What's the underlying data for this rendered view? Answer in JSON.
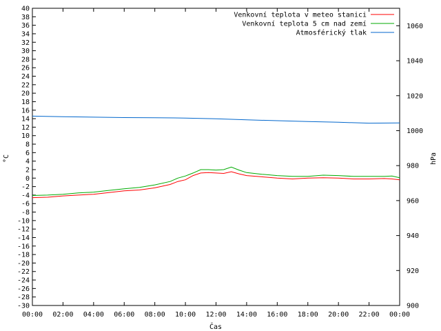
{
  "chart_data": {
    "type": "line",
    "xlabel": "Čas",
    "ylabel_left": "°C",
    "ylabel_right": "hPa",
    "x_ticks": [
      "00:00",
      "02:00",
      "04:00",
      "06:00",
      "08:00",
      "10:00",
      "12:00",
      "14:00",
      "16:00",
      "18:00",
      "20:00",
      "22:00",
      "00:00"
    ],
    "x_range_hours": [
      0,
      24
    ],
    "y_left_range": [
      -30,
      40
    ],
    "y_left_step": 2,
    "y_right_range": [
      900,
      1070
    ],
    "y_right_ticks": [
      900,
      920,
      940,
      960,
      980,
      1000,
      1020,
      1040,
      1060
    ],
    "grid": false,
    "legend_position": "top-right",
    "series": [
      {
        "name": "Venkovní teplota v meteo stanici",
        "color": "#ff0000",
        "axis": "left",
        "x": [
          0,
          1,
          2,
          3,
          4,
          5,
          6,
          7,
          8,
          9,
          9.5,
          10,
          10.5,
          11,
          11.5,
          12,
          12.5,
          13,
          13.5,
          14,
          15,
          16,
          17,
          18,
          19,
          20,
          21,
          22,
          23,
          23.5,
          24
        ],
        "values": [
          -4.6,
          -4.5,
          -4.2,
          -4.0,
          -3.8,
          -3.4,
          -3.0,
          -2.8,
          -2.3,
          -1.5,
          -0.8,
          -0.4,
          0.6,
          1.2,
          1.3,
          1.2,
          1.1,
          1.5,
          1.0,
          0.6,
          0.3,
          0.0,
          -0.2,
          0.0,
          0.1,
          0.0,
          -0.2,
          -0.2,
          -0.1,
          -0.2,
          -0.4
        ]
      },
      {
        "name": "Venkovní teplota 5 cm nad zemí",
        "color": "#00aa00",
        "axis": "left",
        "x": [
          0,
          1,
          2,
          3,
          4,
          5,
          6,
          7,
          8,
          9,
          9.5,
          10,
          10.5,
          11,
          11.5,
          12,
          12.5,
          13,
          13.5,
          14,
          15,
          16,
          17,
          18,
          19,
          20,
          21,
          22,
          23,
          23.5,
          24
        ],
        "values": [
          -4.1,
          -4.0,
          -3.8,
          -3.5,
          -3.3,
          -2.9,
          -2.5,
          -2.2,
          -1.6,
          -0.8,
          0.0,
          0.5,
          1.2,
          2.0,
          2.0,
          1.9,
          2.0,
          2.6,
          1.9,
          1.3,
          0.9,
          0.6,
          0.4,
          0.4,
          0.7,
          0.6,
          0.4,
          0.4,
          0.4,
          0.5,
          0.1
        ]
      },
      {
        "name": "Atmosférický tlak",
        "color": "#0066cc",
        "axis": "right",
        "x": [
          0,
          2,
          4,
          6,
          8,
          10,
          12,
          14,
          16,
          18,
          20,
          22,
          24
        ],
        "values": [
          1008.3,
          1008.0,
          1007.7,
          1007.5,
          1007.4,
          1007.2,
          1006.8,
          1006.2,
          1005.7,
          1005.2,
          1004.8,
          1004.3,
          1004.4
        ]
      }
    ]
  }
}
